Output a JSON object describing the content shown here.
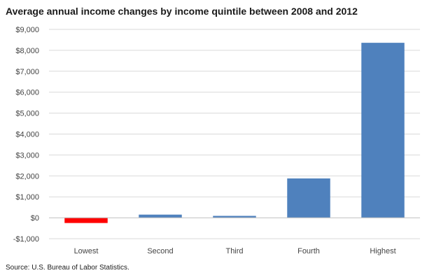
{
  "chart_data": {
    "type": "bar",
    "title": "Average annual income changes by income quintile between 2008 and 2012",
    "source": "Source: U.S. Bureau of Labor Statistics.",
    "categories": [
      "Lowest",
      "Second",
      "Third",
      "Fourth",
      "Highest"
    ],
    "values": [
      -250,
      150,
      90,
      1880,
      8360
    ],
    "ylim": [
      -1000,
      9000
    ],
    "yticks": [
      9000,
      8000,
      7000,
      6000,
      5000,
      4000,
      3000,
      2000,
      1000,
      0,
      -1000
    ],
    "ytick_labels": [
      "$9,000",
      "$8,000",
      "$7,000",
      "$6,000",
      "$5,000",
      "$4,000",
      "$3,000",
      "$2,000",
      "$1,000",
      "$0",
      "-$1,000"
    ],
    "xlabel": "",
    "ylabel": "",
    "grid": true,
    "colors": {
      "positive": "#4f81bd",
      "negative": "#ff0000",
      "grid": "#d9d9d9",
      "axis": "#bfbfbf"
    }
  }
}
